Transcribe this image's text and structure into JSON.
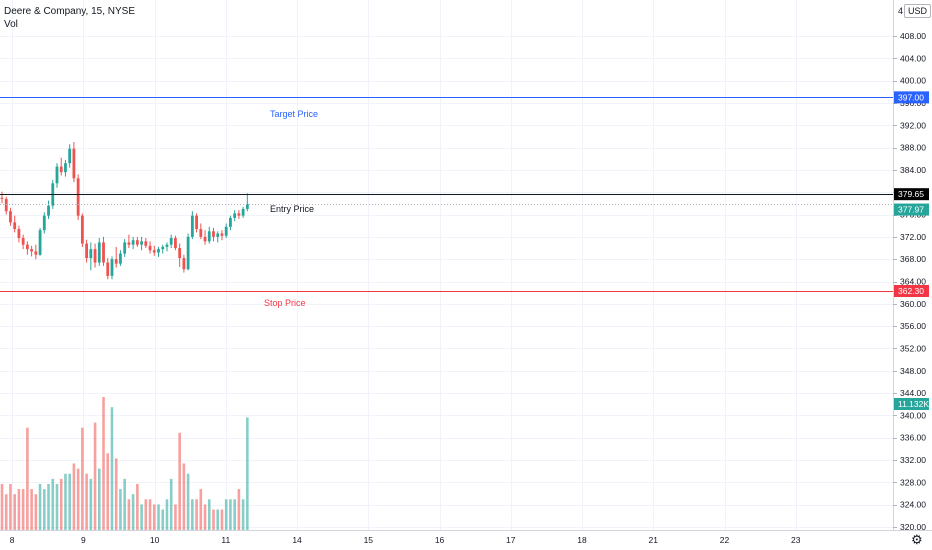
{
  "header": {
    "symbol": "Deere & Company, 15, NYSE",
    "indicator": "Vol",
    "currency": "USD",
    "corner": "4"
  },
  "icons": {
    "settings": "gear-icon"
  },
  "colors": {
    "up": "#26a69a",
    "down": "#ef5350",
    "target": "#2962ff",
    "stop": "#f23645",
    "entry": "#131722",
    "grid": "#f0f3fa",
    "axis": "#131722",
    "last": "#26a69a"
  },
  "chart_data": {
    "type": "candlestick",
    "title": "Deere & Company, 15, NYSE",
    "ylim": [
      318,
      411
    ],
    "y_ticks": [
      "408.00",
      "404.00",
      "400.00",
      "396.00",
      "392.00",
      "388.00",
      "384.00",
      "380.00",
      "376.00",
      "372.00",
      "368.00",
      "364.00",
      "360.00",
      "356.00",
      "352.00",
      "348.00",
      "344.00",
      "340.00",
      "336.00",
      "332.00",
      "328.00",
      "324.00",
      "320.00"
    ],
    "x_labels": [
      {
        "label": "8",
        "pos": 0.6
      },
      {
        "label": "9",
        "pos": 11.0
      },
      {
        "label": "10",
        "pos": 21.4
      },
      {
        "label": "11",
        "pos": 31.8
      },
      {
        "label": "14",
        "pos": 42.2
      },
      {
        "label": "15",
        "pos": 52.6
      },
      {
        "label": "16",
        "pos": 63.0
      },
      {
        "label": "17",
        "pos": 73.4
      },
      {
        "label": "18",
        "pos": 83.8
      },
      {
        "label": "21",
        "pos": 94.2
      },
      {
        "label": "22",
        "pos": 104.6
      },
      {
        "label": "23",
        "pos": 115.0
      }
    ],
    "candles": [
      [
        379.0,
        380.1,
        378.0,
        378.8
      ],
      [
        378.8,
        379.2,
        376.0,
        376.6
      ],
      [
        376.6,
        377.2,
        374.0,
        374.6
      ],
      [
        374.6,
        375.8,
        372.8,
        373.4
      ],
      [
        373.4,
        374.0,
        371.0,
        371.8
      ],
      [
        371.8,
        372.4,
        369.8,
        370.6
      ],
      [
        370.6,
        371.2,
        368.8,
        369.8
      ],
      [
        369.8,
        370.4,
        368.5,
        369.4
      ],
      [
        369.4,
        370.6,
        368.0,
        368.8
      ],
      [
        368.8,
        373.6,
        368.6,
        373.2
      ],
      [
        373.2,
        376.4,
        372.6,
        375.8
      ],
      [
        375.8,
        378.5,
        375.2,
        377.6
      ],
      [
        377.6,
        382.2,
        377.0,
        381.6
      ],
      [
        381.6,
        385.2,
        380.8,
        384.6
      ],
      [
        384.6,
        386.2,
        383.0,
        383.6
      ],
      [
        383.6,
        385.8,
        382.8,
        385.2
      ],
      [
        385.2,
        388.6,
        384.4,
        387.8
      ],
      [
        387.8,
        389.0,
        381.8,
        382.5
      ],
      [
        382.5,
        383.2,
        375.0,
        375.8
      ],
      [
        375.8,
        376.2,
        370.2,
        370.8
      ],
      [
        370.8,
        371.5,
        367.4,
        368.2
      ],
      [
        368.2,
        371.0,
        366.0,
        369.8
      ],
      [
        369.8,
        370.8,
        366.5,
        367.4
      ],
      [
        367.4,
        371.8,
        366.8,
        371.0
      ],
      [
        371.0,
        372.0,
        366.8,
        367.4
      ],
      [
        367.4,
        368.2,
        364.4,
        365.0
      ],
      [
        365.0,
        368.5,
        364.4,
        368.0
      ],
      [
        368.0,
        370.2,
        366.5,
        367.2
      ],
      [
        367.2,
        369.6,
        366.8,
        369.0
      ],
      [
        369.0,
        371.6,
        368.4,
        371.0
      ],
      [
        371.0,
        372.4,
        370.0,
        370.6
      ],
      [
        370.6,
        372.0,
        369.8,
        371.4
      ],
      [
        371.4,
        372.0,
        370.2,
        370.6
      ],
      [
        370.6,
        372.0,
        369.6,
        371.2
      ],
      [
        371.2,
        371.8,
        370.0,
        370.4
      ],
      [
        370.4,
        371.2,
        369.0,
        369.6
      ],
      [
        369.6,
        370.4,
        368.6,
        369.2
      ],
      [
        369.2,
        370.2,
        368.4,
        369.8
      ],
      [
        369.8,
        370.6,
        369.0,
        370.2
      ],
      [
        370.2,
        371.0,
        369.4,
        370.6
      ],
      [
        370.6,
        372.4,
        370.0,
        371.8
      ],
      [
        371.8,
        372.2,
        369.6,
        370.0
      ],
      [
        370.0,
        370.8,
        366.6,
        368.2
      ],
      [
        368.2,
        368.8,
        365.6,
        366.2
      ],
      [
        366.2,
        372.6,
        366.0,
        372.0
      ],
      [
        372.0,
        376.6,
        371.6,
        375.8
      ],
      [
        375.8,
        376.2,
        372.8,
        373.4
      ],
      [
        373.4,
        374.4,
        371.6,
        372.0
      ],
      [
        372.0,
        373.2,
        370.6,
        371.2
      ],
      [
        371.2,
        373.8,
        370.8,
        373.0
      ],
      [
        373.0,
        373.6,
        371.2,
        372.0
      ],
      [
        372.0,
        373.0,
        371.0,
        372.6
      ],
      [
        372.6,
        373.2,
        371.4,
        372.2
      ],
      [
        372.2,
        374.4,
        371.8,
        373.8
      ],
      [
        373.8,
        375.8,
        373.2,
        375.4
      ],
      [
        375.4,
        376.8,
        374.8,
        376.2
      ],
      [
        376.2,
        376.8,
        375.2,
        375.8
      ],
      [
        375.8,
        377.4,
        375.4,
        377.0
      ],
      [
        377.0,
        379.8,
        376.6,
        377.9
      ]
    ],
    "volumes": [
      9,
      7,
      9,
      7,
      8,
      8,
      20,
      8,
      7,
      9,
      8,
      9,
      10,
      9,
      10,
      11,
      11,
      13,
      12,
      20,
      11,
      10,
      21,
      12,
      26,
      15,
      24,
      14,
      8,
      10,
      6,
      7,
      9,
      5,
      6,
      6,
      5,
      5,
      4,
      6,
      10,
      5,
      19,
      13,
      11,
      6,
      6,
      8,
      5,
      6,
      4,
      4,
      4,
      6,
      6,
      6,
      8,
      6,
      22
    ],
    "target": {
      "label": "Target Price",
      "value": 397.0,
      "tag": "397.00"
    },
    "entry": {
      "label": "Entry Price",
      "value": 379.65,
      "tag": "379.65"
    },
    "last": {
      "value": 377.97,
      "tag": "377.97"
    },
    "stop": {
      "label": "Stop Price",
      "value": 362.3,
      "tag": "362.30"
    },
    "volume_last": {
      "tag": "11.132K"
    },
    "grid": true
  }
}
